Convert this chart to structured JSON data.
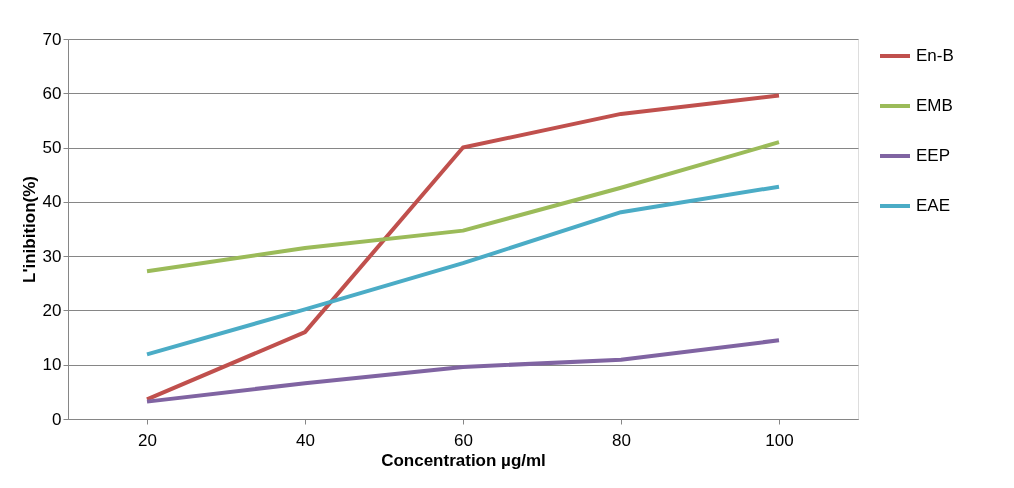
{
  "chart_data": {
    "type": "line",
    "xlabel": "Concentration µg/ml",
    "ylabel": "L'inibition(%)",
    "categories": [
      "20",
      "40",
      "60",
      "80",
      "100"
    ],
    "series": [
      {
        "name": "En-B",
        "color": "#c0504d",
        "values": [
          3.6,
          16,
          50,
          56.2,
          59.6
        ]
      },
      {
        "name": "EMB",
        "color": "#9bbb59",
        "values": [
          27.2,
          31.5,
          34.7,
          42.6,
          51
        ]
      },
      {
        "name": "EEP",
        "color": "#8064a2",
        "values": [
          3.2,
          6.6,
          9.6,
          10.9,
          14.5
        ]
      },
      {
        "name": "EAE",
        "color": "#4bacc6",
        "values": [
          11.9,
          20.2,
          28.7,
          38.1,
          42.8
        ]
      }
    ],
    "ylim": [
      0,
      70
    ],
    "yticks": [
      0,
      10,
      20,
      30,
      40,
      50,
      60,
      70
    ],
    "grid": "y",
    "legend": "right",
    "marker": "none",
    "line_style": "solid"
  }
}
